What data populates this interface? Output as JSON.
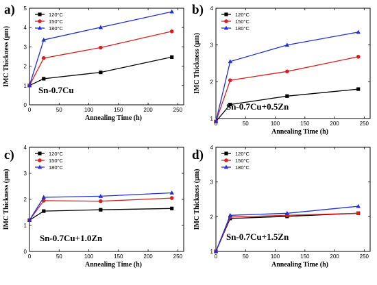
{
  "chart_data": [
    {
      "panel": "a)",
      "type": "line",
      "annotation": "Sn-0.7Cu",
      "xlabel": "Annealing Time (h)",
      "ylabel": "IMC Thickness (μm)",
      "xlim": [
        0,
        260
      ],
      "ylim": [
        0,
        5
      ],
      "xticks": [
        0,
        50,
        100,
        150,
        200,
        250
      ],
      "yticks": [
        0,
        1,
        2,
        3,
        4,
        5
      ],
      "legend_position": "top-left",
      "x": [
        0,
        24,
        120,
        240
      ],
      "series": [
        {
          "name": "120°C",
          "color": "#000000",
          "marker": "square",
          "values": [
            1.0,
            1.35,
            1.68,
            2.47
          ]
        },
        {
          "name": "150°C",
          "color": "#d62020",
          "marker": "circle",
          "values": [
            1.0,
            2.42,
            2.96,
            3.8
          ]
        },
        {
          "name": "180°C",
          "color": "#1f2fd1",
          "marker": "triangle",
          "values": [
            1.0,
            3.36,
            4.01,
            4.82
          ]
        }
      ]
    },
    {
      "panel": "b)",
      "type": "line",
      "annotation": "Sn-0.7Cu+0.5Zn",
      "xlabel": "Annealing Time (h)",
      "ylabel": "IMC Thickness (μm)",
      "xlim": [
        0,
        260
      ],
      "ylim": [
        1,
        4
      ],
      "xticks": [
        0,
        50,
        100,
        150,
        200,
        250
      ],
      "yticks": [
        1,
        2,
        3,
        4
      ],
      "legend_position": "top-left",
      "x": [
        0,
        24,
        120,
        240
      ],
      "series": [
        {
          "name": "120°C",
          "color": "#000000",
          "marker": "square",
          "values": [
            0.92,
            1.38,
            1.61,
            1.8
          ]
        },
        {
          "name": "150°C",
          "color": "#d62020",
          "marker": "circle",
          "values": [
            0.92,
            2.04,
            2.28,
            2.68
          ]
        },
        {
          "name": "180°C",
          "color": "#1f2fd1",
          "marker": "triangle",
          "values": [
            0.92,
            2.55,
            3.0,
            3.35
          ]
        }
      ]
    },
    {
      "panel": "c)",
      "type": "line",
      "annotation": "Sn-0.7Cu+1.0Zn",
      "xlabel": "Annealing Time (h)",
      "ylabel": "IMC Thickness (μm)",
      "xlim": [
        0,
        260
      ],
      "ylim": [
        0,
        4
      ],
      "xticks": [
        0,
        50,
        100,
        150,
        200,
        250
      ],
      "yticks": [
        0,
        1,
        2,
        3,
        4
      ],
      "legend_position": "top-left",
      "x": [
        0,
        24,
        120,
        240
      ],
      "series": [
        {
          "name": "120°C",
          "color": "#000000",
          "marker": "square",
          "values": [
            1.2,
            1.55,
            1.6,
            1.65
          ]
        },
        {
          "name": "150°C",
          "color": "#d62020",
          "marker": "circle",
          "values": [
            1.2,
            1.95,
            1.93,
            2.05
          ]
        },
        {
          "name": "180°C",
          "color": "#1f2fd1",
          "marker": "triangle",
          "values": [
            1.2,
            2.08,
            2.12,
            2.25
          ]
        }
      ]
    },
    {
      "panel": "d)",
      "type": "line",
      "annotation": "Sn-0.7Cu+1.5Zn",
      "xlabel": "Annealing Time (h)",
      "ylabel": "IMC Thickness (μm)",
      "xlim": [
        0,
        260
      ],
      "ylim": [
        1,
        4
      ],
      "xticks": [
        0,
        50,
        100,
        150,
        200,
        250
      ],
      "yticks": [
        1,
        2,
        3,
        4
      ],
      "legend_position": "top-left",
      "x": [
        0,
        24,
        120,
        240
      ],
      "series": [
        {
          "name": "120°C",
          "color": "#000000",
          "marker": "square",
          "values": [
            1.0,
            1.95,
            2.01,
            2.1
          ]
        },
        {
          "name": "150°C",
          "color": "#d62020",
          "marker": "circle",
          "values": [
            1.0,
            1.99,
            2.04,
            2.1
          ]
        },
        {
          "name": "180°C",
          "color": "#1f2fd1",
          "marker": "triangle",
          "values": [
            1.0,
            2.04,
            2.1,
            2.3
          ]
        }
      ]
    }
  ]
}
